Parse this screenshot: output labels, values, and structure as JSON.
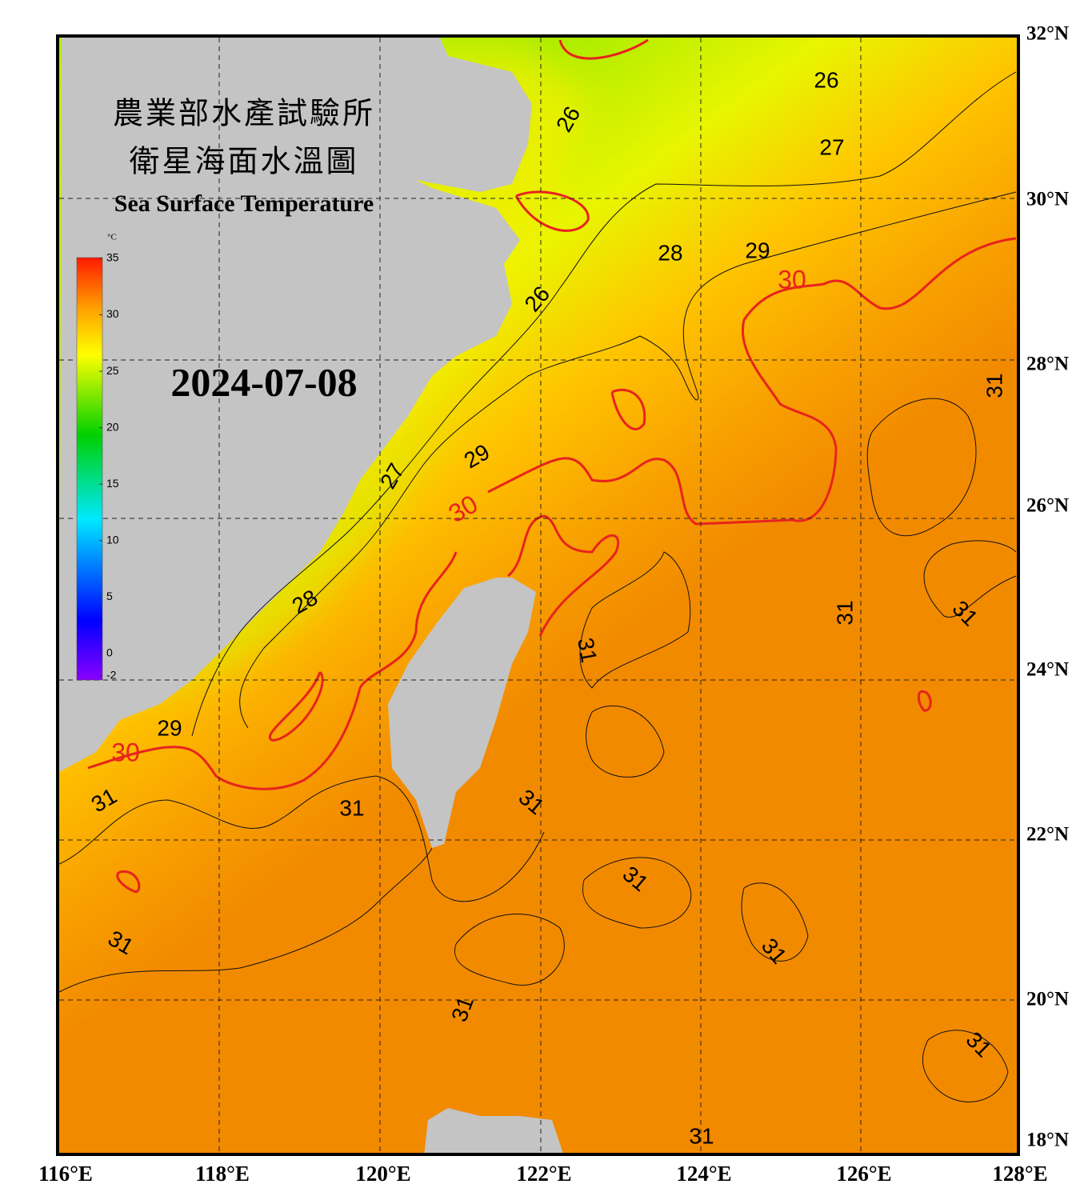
{
  "header": {
    "title_zh_1": "農業部水產試驗所",
    "title_zh_2": "衛星海面水溫圖",
    "title_en": "Sea Surface Temperature",
    "date": "2024-07-08"
  },
  "colorbar": {
    "unit": "°C",
    "lim": [
      -2,
      35
    ],
    "ticks": [
      -2,
      0,
      5,
      10,
      15,
      20,
      25,
      30,
      35
    ]
  },
  "axes": {
    "lon_labels": [
      "116°E",
      "118°E",
      "120°E",
      "122°E",
      "124°E",
      "126°E",
      "128°E"
    ],
    "lat_labels": [
      "32°N",
      "30°N",
      "28°N",
      "26°N",
      "24°N",
      "22°N",
      "20°N",
      "18°N"
    ]
  },
  "contour_labels": [
    "26",
    "26",
    "27",
    "28",
    "29",
    "30",
    "26",
    "31",
    "29",
    "27",
    "30",
    "31",
    "31",
    "28",
    "31",
    "29",
    "30",
    "31",
    "31",
    "31",
    "31",
    "31",
    "31",
    "31",
    "31",
    "31"
  ]
}
